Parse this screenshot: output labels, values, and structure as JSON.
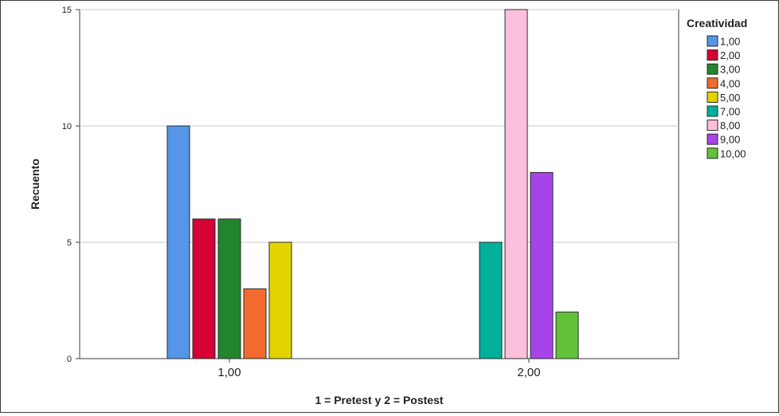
{
  "chart_data": {
    "type": "bar",
    "xlabel": "1 = Pretest y 2 = Postest",
    "ylabel": "Recuento",
    "ylim": [
      0,
      15
    ],
    "yticks": [
      "0",
      "5",
      "10",
      "15"
    ],
    "categories": [
      "1,00",
      "2,00"
    ],
    "legend_title": "Creatividad",
    "legend_position": "top-right",
    "grid": true,
    "series": [
      {
        "name": "1,00",
        "color": "#5596e6",
        "values": [
          10,
          0
        ]
      },
      {
        "name": "2,00",
        "color": "#d70034",
        "values": [
          6,
          0
        ]
      },
      {
        "name": "3,00",
        "color": "#22852d",
        "values": [
          6,
          0
        ]
      },
      {
        "name": "4,00",
        "color": "#f26a2e",
        "values": [
          3,
          0
        ]
      },
      {
        "name": "5,00",
        "color": "#e2d400",
        "values": [
          5,
          0
        ]
      },
      {
        "name": "7,00",
        "color": "#00b09b",
        "values": [
          0,
          5
        ]
      },
      {
        "name": "8,00",
        "color": "#fcbfdc",
        "values": [
          0,
          15
        ]
      },
      {
        "name": "9,00",
        "color": "#a744e8",
        "values": [
          0,
          8
        ]
      },
      {
        "name": "10,00",
        "color": "#61c23a",
        "values": [
          0,
          2
        ]
      }
    ]
  }
}
